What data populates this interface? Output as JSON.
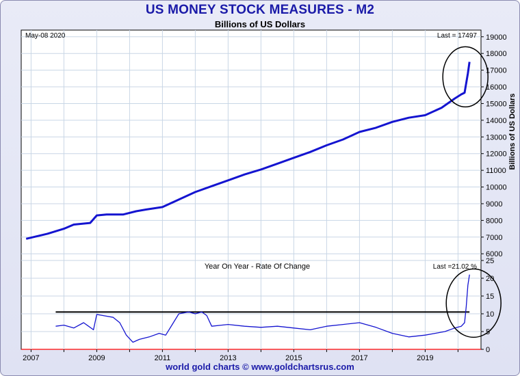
{
  "title": "US MONEY STOCK MEASURES - M2",
  "subtitle": "Billions of US Dollars",
  "footer": "world gold charts © www.goldchartsrus.com",
  "colors": {
    "series": "#1414d0",
    "grid": "#c8d6e6",
    "zero_line": "#ff0000",
    "reference_line": "#000000",
    "title": "#1a1aa8"
  },
  "chart_data": [
    {
      "type": "line",
      "date_label": "May-08  2020",
      "last_label": "Last = 17497",
      "ylabel": "Billions of US Dollars",
      "ylim": [
        5600,
        19400
      ],
      "yticks": [
        6000,
        7000,
        8000,
        9000,
        10000,
        11000,
        12000,
        13000,
        14000,
        15000,
        16000,
        17000,
        18000,
        19000
      ],
      "xlim": [
        2006.7,
        2020.7
      ],
      "series": [
        {
          "x": [
            2006.85,
            2007.5,
            2008.0,
            2008.3,
            2008.8,
            2009.0,
            2009.3,
            2009.8,
            2010.2,
            2010.5,
            2011.0,
            2011.5,
            2012.0,
            2012.5,
            2013.0,
            2013.5,
            2014.0,
            2014.5,
            2015.0,
            2015.5,
            2016.0,
            2016.5,
            2017.0,
            2017.5,
            2018.0,
            2018.5,
            2019.0,
            2019.5,
            2019.9,
            2020.1,
            2020.2,
            2020.3,
            2020.35
          ],
          "values": [
            6900,
            7200,
            7500,
            7750,
            7850,
            8300,
            8350,
            8350,
            8550,
            8650,
            8800,
            9250,
            9700,
            10050,
            10400,
            10750,
            11050,
            11400,
            11750,
            12100,
            12500,
            12850,
            13300,
            13550,
            13900,
            14150,
            14300,
            14750,
            15300,
            15550,
            15650,
            16800,
            17497
          ]
        }
      ],
      "annotation": "circle around final values"
    },
    {
      "type": "line",
      "title": "Year On Year - Rate Of Change",
      "last_label": "Last =21.02 %",
      "ylim": [
        0,
        25
      ],
      "yticks": [
        0,
        5,
        10,
        15,
        20,
        25
      ],
      "xlim": [
        2006.7,
        2020.7
      ],
      "xticks": [
        "2007",
        "2009",
        "2011",
        "2013",
        "2015",
        "2017",
        "2019"
      ],
      "xtick_values": [
        2007,
        2009,
        2011,
        2013,
        2015,
        2017,
        2019
      ],
      "reference_value": 10.5,
      "reference_x": [
        2007.75,
        2020.35
      ],
      "series": [
        {
          "x": [
            2007.75,
            2008.0,
            2008.3,
            2008.6,
            2008.9,
            2009.0,
            2009.2,
            2009.5,
            2009.7,
            2009.9,
            2010.1,
            2010.3,
            2010.6,
            2010.9,
            2011.1,
            2011.3,
            2011.5,
            2011.8,
            2012.0,
            2012.2,
            2012.35,
            2012.5,
            2012.8,
            2013.0,
            2013.5,
            2014.0,
            2014.5,
            2015.0,
            2015.5,
            2016.0,
            2016.5,
            2017.0,
            2017.5,
            2018.0,
            2018.5,
            2019.0,
            2019.3,
            2019.6,
            2019.9,
            2020.1,
            2020.2,
            2020.25,
            2020.3,
            2020.35
          ],
          "values": [
            6.5,
            6.8,
            6.0,
            7.5,
            5.5,
            9.8,
            9.5,
            9.0,
            7.5,
            4.0,
            2.0,
            2.8,
            3.5,
            4.5,
            4.0,
            7.0,
            10.0,
            10.5,
            10.0,
            10.5,
            9.5,
            6.5,
            6.8,
            7.0,
            6.5,
            6.2,
            6.5,
            6.0,
            5.5,
            6.5,
            7.0,
            7.5,
            6.2,
            4.5,
            3.5,
            4.0,
            4.5,
            5.0,
            6.0,
            6.5,
            7.5,
            12.0,
            18.0,
            21.02
          ]
        }
      ],
      "annotation": "circle around final values"
    }
  ]
}
